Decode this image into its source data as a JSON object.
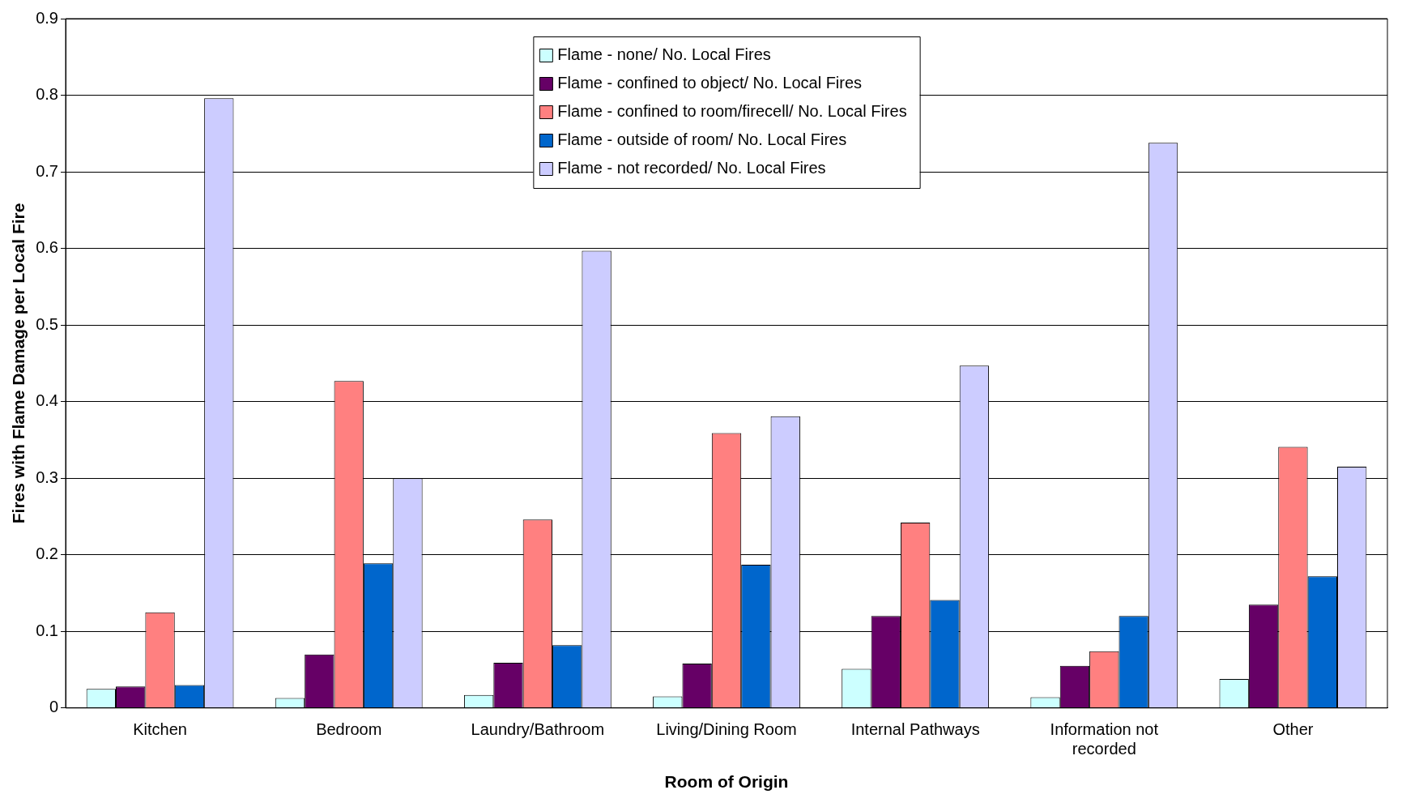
{
  "chart_data": {
    "type": "bar",
    "xlabel": "Room of Origin",
    "ylabel": "Fires with Flame Damage per Local Fire",
    "categories": [
      "Kitchen",
      "Bedroom",
      "Laundry/Bathroom",
      "Living/Dining Room",
      "Internal Pathways",
      "Information not recorded",
      "Other"
    ],
    "series": [
      {
        "name": "Flame - none/ No. Local Fires",
        "color": "#ccffff",
        "values": [
          0.025,
          0.013,
          0.017,
          0.015,
          0.051,
          0.014,
          0.038
        ]
      },
      {
        "name": "Flame - confined to object/ No. Local Fires",
        "color": "#660066",
        "values": [
          0.028,
          0.07,
          0.059,
          0.058,
          0.12,
          0.055,
          0.135
        ]
      },
      {
        "name": "Flame - confined to room/firecell/ No. Local Fires",
        "color": "#ff8080",
        "values": [
          0.125,
          0.427,
          0.246,
          0.359,
          0.242,
          0.074,
          0.341
        ]
      },
      {
        "name": "Flame - outside of room/ No. Local Fires",
        "color": "#0066cc",
        "values": [
          0.03,
          0.189,
          0.082,
          0.187,
          0.141,
          0.12,
          0.172
        ]
      },
      {
        "name": "Flame - not recorded/ No. Local Fires",
        "color": "#ccccff",
        "values": [
          0.796,
          0.3,
          0.597,
          0.381,
          0.447,
          0.738,
          0.315
        ]
      }
    ],
    "ylim": [
      0,
      0.9
    ],
    "yticks": [
      0,
      0.1,
      0.2,
      0.3,
      0.4,
      0.5,
      0.6,
      0.7,
      0.8,
      0.9
    ],
    "grid": "y",
    "legend": "top"
  }
}
